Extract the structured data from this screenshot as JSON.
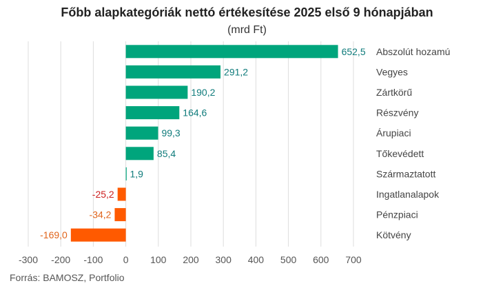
{
  "chart_data": {
    "type": "bar",
    "orientation": "horizontal",
    "title": "Főbb alapkategóriák nettó értékesítése 2025 első 9 hónapjában",
    "subtitle": "(mrd Ft)",
    "source": "Forrás: BAMOSZ, Portfolio",
    "categories": [
      "Abszolút hozamú",
      "Vegyes",
      "Zártkörű",
      "Részvény",
      "Árupiaci",
      "Tőkevédett",
      "Származtatott",
      "Ingatlanalapok",
      "Pénzpiaci",
      "Kötvény"
    ],
    "values": [
      652.5,
      291.2,
      190.2,
      164.6,
      99.3,
      85.4,
      1.9,
      -25.2,
      -34.2,
      -169.0
    ],
    "value_labels": [
      "652,5",
      "291,2",
      "190,2",
      "164,6",
      "99,3",
      "85,4",
      "1,9",
      "-25,2",
      "-34,2",
      "-169,0"
    ],
    "xlim": [
      -300,
      700
    ],
    "xticks": [
      -300,
      -200,
      -100,
      0,
      100,
      200,
      300,
      400,
      500,
      600,
      700
    ],
    "grid": true,
    "colors": {
      "positive_bar": "#00a57c",
      "positive_label": "#0f7b7b",
      "neg_bar_1": "#cc1d1d",
      "neg_bar": "#ff5a00",
      "neg_label_1": "#cc1d1d",
      "neg_label": "#e0631a",
      "grid": "#dddddd"
    },
    "bar_colors": [
      "#00a57c",
      "#00a57c",
      "#00a57c",
      "#00a57c",
      "#00a57c",
      "#00a57c",
      "#00a57c",
      "#ff5a00",
      "#ff5a00",
      "#ff5a00"
    ],
    "label_colors": [
      "#0f7b7b",
      "#0f7b7b",
      "#0f7b7b",
      "#0f7b7b",
      "#0f7b7b",
      "#0f7b7b",
      "#0f7b7b",
      "#cc1d1d",
      "#e0631a",
      "#e0631a"
    ]
  }
}
